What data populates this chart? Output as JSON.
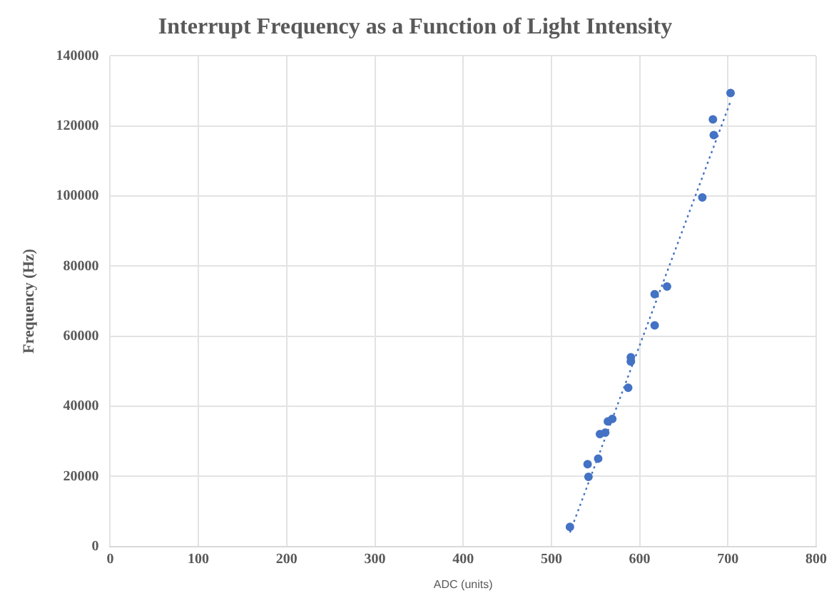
{
  "chart_data": {
    "type": "scatter",
    "title": "Interrupt Frequency as a Function of Light Intensity",
    "xlabel": "ADC (units)",
    "ylabel": "Frequency (Hz)",
    "x": [
      521,
      541,
      542,
      553,
      555,
      561,
      564,
      569,
      587,
      590,
      590,
      617,
      617,
      631,
      671,
      683,
      684,
      703
    ],
    "series": [
      {
        "type": "scatter",
        "color": "#4472c4",
        "marker": "circle",
        "values": [
          5600,
          23500,
          19900,
          25100,
          32100,
          32500,
          35700,
          36400,
          45300,
          52800,
          54000,
          63100,
          72000,
          74200,
          99600,
          121900,
          117400,
          129400
        ]
      },
      {
        "type": "line",
        "color": "#4472c4",
        "line_style": "dotted",
        "marker": "none",
        "x": [
          521,
          703
        ],
        "values": [
          4000,
          127000
        ]
      }
    ],
    "xlim": [
      0,
      800
    ],
    "xticks": [
      0,
      100,
      200,
      300,
      400,
      500,
      600,
      700,
      800
    ],
    "ylim": [
      0,
      140000
    ],
    "yticks": [
      0,
      20000,
      40000,
      60000,
      80000,
      100000,
      120000,
      140000
    ],
    "grid": true,
    "legend": false
  }
}
